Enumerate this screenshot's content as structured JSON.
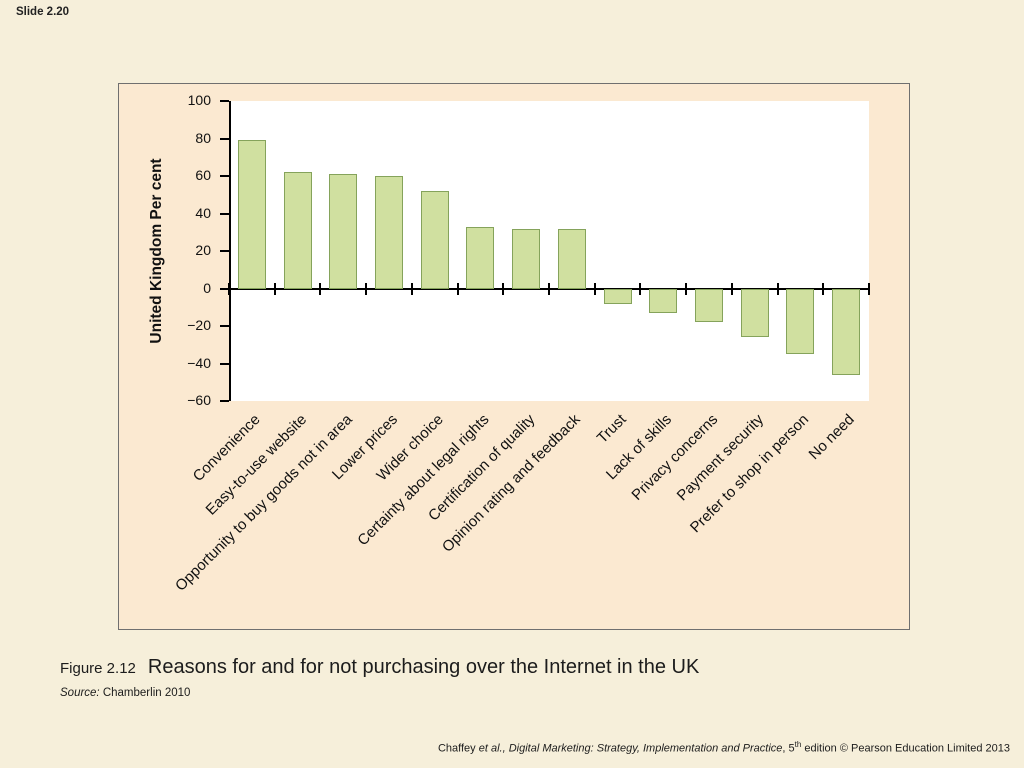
{
  "slide": {
    "slide_number": "Slide 2.20",
    "caption_prefix": "Figure 2.12",
    "caption_title": "Reasons for and for not purchasing over the Internet in the UK",
    "source_label": "Source:",
    "source_text": " Chamberlin 2010",
    "footer": {
      "part1": "Chaffey ",
      "part2": "et al., Digital Marketing: Strategy, Implementation and Practice",
      "part3": ", 5",
      "part4": "th",
      "part5": " edition © Pearson Education Limited 2013"
    }
  },
  "chart_data": {
    "type": "bar",
    "title": "",
    "xlabel": "",
    "ylabel": "United Kingdom Per cent",
    "ylim": [
      -60,
      100
    ],
    "yticks": [
      100,
      80,
      60,
      40,
      20,
      0,
      -20,
      -40,
      -60
    ],
    "ytick_labels": [
      "100",
      "80",
      "60",
      "40",
      "20",
      "0",
      "−20",
      "−40",
      "−60"
    ],
    "categories": [
      "Convenience",
      "Easy-to-use website",
      "Opportunity to buy goods not in area",
      "Lower prices",
      "Wider choice",
      "Certainty about legal rights",
      "Certification of quality",
      "Opinion rating and feedback",
      "Trust",
      "Lack of skills",
      "Privacy concerns",
      "Payment security",
      "Prefer to shop in person",
      "No need"
    ],
    "values": [
      79,
      62,
      61,
      60,
      52,
      33,
      32,
      32,
      -8,
      -13,
      -18,
      -26,
      -35,
      -46
    ],
    "bar_color": "#d0e0a0",
    "bar_border": "#85a35b",
    "plot_bg": "#ffffff",
    "panel_bg": "#fbe9d1",
    "grid": false,
    "legend": false
  }
}
